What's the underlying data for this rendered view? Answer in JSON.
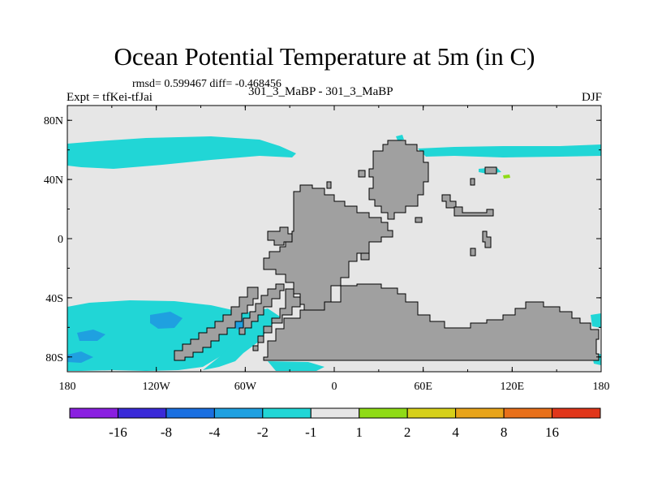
{
  "chart_data": {
    "type": "heatmap",
    "title": "Ocean Potential Temperature at 5m (in C)",
    "stats_text": "rmsd= 0.599467 diff= -0.468456",
    "center_label": "301_3_MaBP - 301_3_MaBP",
    "left_label": "Expt = tfKei-tfJai",
    "right_label": "DJF",
    "xlim": [
      -180,
      180
    ],
    "ylim": [
      -90,
      90
    ],
    "x_ticks": [
      {
        "value": -180,
        "label": "180"
      },
      {
        "value": -120,
        "label": "120W"
      },
      {
        "value": -60,
        "label": "60W"
      },
      {
        "value": 0,
        "label": "0"
      },
      {
        "value": 60,
        "label": "60E"
      },
      {
        "value": 120,
        "label": "120E"
      },
      {
        "value": 180,
        "label": "180"
      }
    ],
    "y_ticks": [
      {
        "value": 80,
        "label": "80N"
      },
      {
        "value": 40,
        "label": "40N"
      },
      {
        "value": 0,
        "label": "0"
      },
      {
        "value": -40,
        "label": "40S"
      },
      {
        "value": -80,
        "label": "80S"
      }
    ],
    "colorbar": {
      "colors": [
        "#8a1fe0",
        "#3a2ad8",
        "#1a6fe0",
        "#1fa0e0",
        "#21d6d6",
        "#e6e6e6",
        "#8fdb16",
        "#d6d01a",
        "#e8a41a",
        "#e8701a",
        "#e0361a"
      ],
      "boundaries": [
        "-16",
        "-8",
        "-4",
        "-2",
        "-1",
        "1",
        "2",
        "4",
        "8",
        "16"
      ]
    },
    "colors": {
      "background": "#e6e6e6",
      "land": "#a0a0a0",
      "minus1": "#21d6d6",
      "minus2": "#1fa0e0",
      "plus1": "#8fdb16"
    }
  }
}
